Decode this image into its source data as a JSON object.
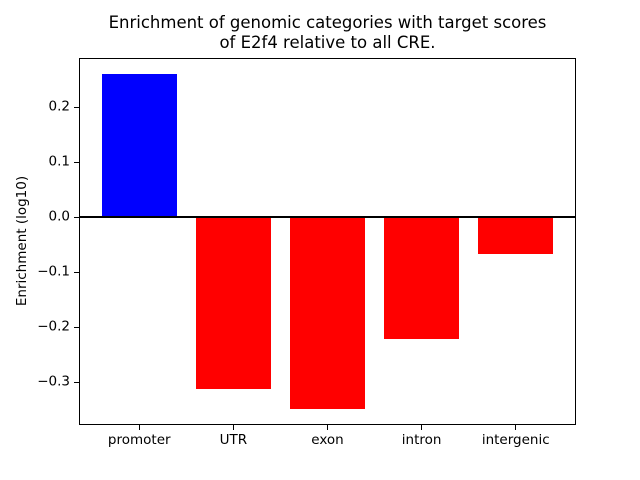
{
  "chart_data": {
    "type": "bar",
    "title": "Enrichment of genomic categories with target scores\nof E2f4 relative to all CRE.",
    "xlabel": "",
    "ylabel": "Enrichment (log10)",
    "categories": [
      "promoter",
      "UTR",
      "exon",
      "intron",
      "intergenic"
    ],
    "values": [
      0.26,
      -0.312,
      -0.348,
      -0.221,
      -0.067
    ],
    "bar_colors": [
      "#0000ff",
      "#ff0000",
      "#ff0000",
      "#ff0000",
      "#ff0000"
    ],
    "positive_color": "#0000ff",
    "negative_color": "#ff0000",
    "bar_width_fraction": 0.8,
    "xlim": [
      -0.64,
      4.64
    ],
    "ylim": [
      -0.378,
      0.29
    ],
    "yticks": [
      {
        "value": 0.2,
        "label": "0.2"
      },
      {
        "value": 0.1,
        "label": "0.1"
      },
      {
        "value": 0.0,
        "label": "0.0"
      },
      {
        "value": -0.1,
        "label": "−0.1"
      },
      {
        "value": -0.2,
        "label": "−0.2"
      },
      {
        "value": -0.3,
        "label": "−0.3"
      }
    ],
    "zero_line": {
      "value": 0.0,
      "color": "#000000"
    },
    "grid": false,
    "legend": null,
    "background_color": "#ffffff",
    "frame_color": "#000000",
    "tick_color": "#000000"
  }
}
